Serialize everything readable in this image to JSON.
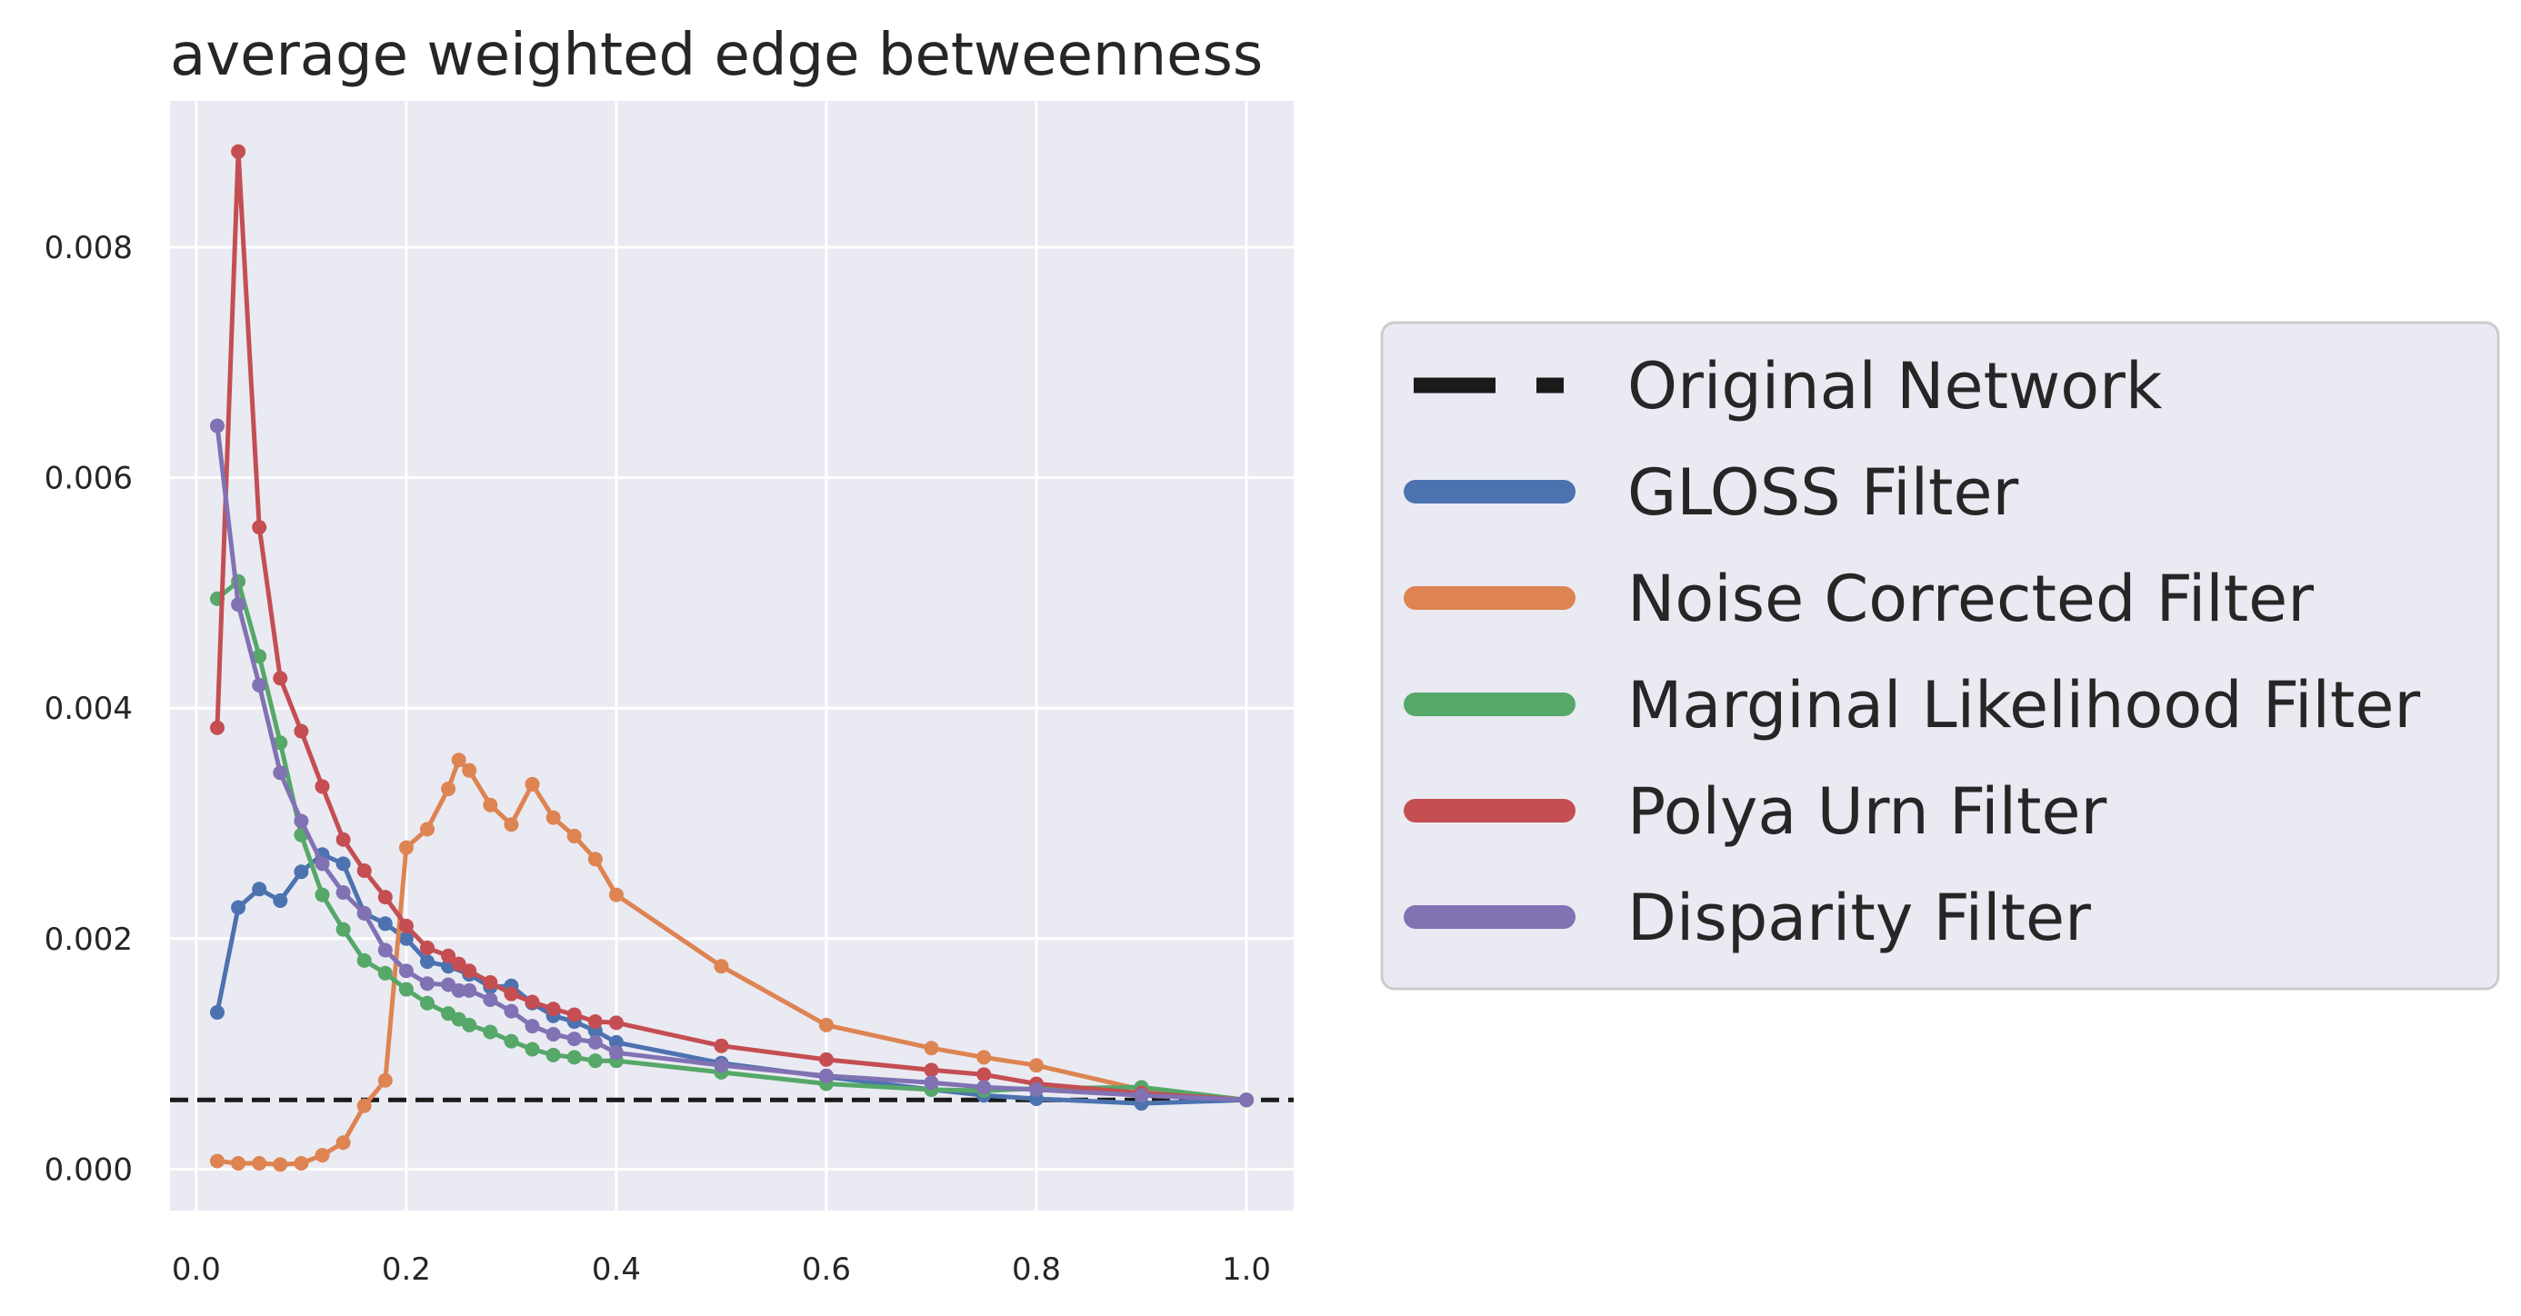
{
  "chart_data": {
    "type": "line",
    "title": "average weighted edge betweenness",
    "xlabel": "",
    "ylabel": "",
    "xlim": [
      -0.025,
      1.045
    ],
    "ylim": [
      -0.00036,
      0.00927
    ],
    "xticks": [
      0.0,
      0.2,
      0.4,
      0.6,
      0.8,
      1.0
    ],
    "xtick_labels": [
      "0.0",
      "0.2",
      "0.4",
      "0.6",
      "0.8",
      "1.0"
    ],
    "yticks": [
      0.0,
      0.002,
      0.004,
      0.006,
      0.008
    ],
    "ytick_labels": [
      "0.000",
      "0.002",
      "0.004",
      "0.006",
      "0.008"
    ],
    "grid": true,
    "legend": "outside-right",
    "reference_line": {
      "name": "Original Network",
      "y": 0.0006,
      "color": "#1a1a1a",
      "style": "dashed"
    },
    "series": [
      {
        "name": "GLOSS Filter",
        "color": "#4c72b0",
        "x": [
          0.02,
          0.04,
          0.06,
          0.08,
          0.1,
          0.12,
          0.14,
          0.16,
          0.18,
          0.2,
          0.22,
          0.24,
          0.26,
          0.28,
          0.3,
          0.32,
          0.34,
          0.36,
          0.38,
          0.4,
          0.5,
          0.6,
          0.7,
          0.75,
          0.8,
          0.9,
          1.0
        ],
        "y": [
          0.00136,
          0.00227,
          0.00243,
          0.00233,
          0.00258,
          0.00273,
          0.00265,
          0.00222,
          0.00213,
          0.002,
          0.0018,
          0.00176,
          0.00169,
          0.00158,
          0.00159,
          0.00144,
          0.00133,
          0.00128,
          0.0012,
          0.0011,
          0.00092,
          0.0008,
          0.00069,
          0.00064,
          0.00061,
          0.00057,
          0.0006
        ]
      },
      {
        "name": "Noise Corrected Filter",
        "color": "#dd8452",
        "x": [
          0.02,
          0.04,
          0.06,
          0.08,
          0.1,
          0.12,
          0.14,
          0.16,
          0.18,
          0.2,
          0.22,
          0.24,
          0.25,
          0.26,
          0.28,
          0.3,
          0.32,
          0.34,
          0.36,
          0.38,
          0.4,
          0.5,
          0.6,
          0.7,
          0.75,
          0.8,
          0.9,
          1.0
        ],
        "y": [
          7e-05,
          5e-05,
          5e-05,
          4e-05,
          5e-05,
          0.00012,
          0.00023,
          0.00055,
          0.00077,
          0.00279,
          0.00295,
          0.0033,
          0.00355,
          0.00346,
          0.00316,
          0.00299,
          0.00334,
          0.00305,
          0.00289,
          0.00269,
          0.00238,
          0.00176,
          0.00125,
          0.00105,
          0.00097,
          0.0009,
          0.00069,
          0.0006
        ]
      },
      {
        "name": "Marginal Likelihood Filter",
        "color": "#55a868",
        "x": [
          0.02,
          0.04,
          0.06,
          0.08,
          0.1,
          0.12,
          0.14,
          0.16,
          0.18,
          0.2,
          0.22,
          0.24,
          0.25,
          0.26,
          0.28,
          0.3,
          0.32,
          0.34,
          0.36,
          0.38,
          0.4,
          0.5,
          0.6,
          0.7,
          0.75,
          0.8,
          0.9,
          1.0
        ],
        "y": [
          0.00495,
          0.0051,
          0.00445,
          0.0037,
          0.0029,
          0.00238,
          0.00208,
          0.00181,
          0.0017,
          0.00156,
          0.00144,
          0.00135,
          0.0013,
          0.00125,
          0.00119,
          0.00111,
          0.00104,
          0.00099,
          0.00097,
          0.00094,
          0.00094,
          0.00084,
          0.00074,
          0.00069,
          0.00068,
          0.0007,
          0.00071,
          0.0006
        ]
      },
      {
        "name": "Polya Urn Filter",
        "color": "#c44e52",
        "x": [
          0.02,
          0.04,
          0.06,
          0.08,
          0.1,
          0.12,
          0.14,
          0.16,
          0.18,
          0.2,
          0.22,
          0.24,
          0.25,
          0.26,
          0.28,
          0.3,
          0.32,
          0.34,
          0.36,
          0.38,
          0.4,
          0.5,
          0.6,
          0.7,
          0.75,
          0.8,
          0.9,
          1.0
        ],
        "y": [
          0.00383,
          0.00883,
          0.00557,
          0.00426,
          0.0038,
          0.00332,
          0.00286,
          0.00259,
          0.00236,
          0.00211,
          0.00192,
          0.00185,
          0.00178,
          0.00172,
          0.00162,
          0.00152,
          0.00145,
          0.00139,
          0.00134,
          0.00128,
          0.00127,
          0.00107,
          0.00095,
          0.00086,
          0.00082,
          0.00074,
          0.00066,
          0.0006
        ]
      },
      {
        "name": "Disparity Filter",
        "color": "#8172b3",
        "x": [
          0.02,
          0.04,
          0.06,
          0.08,
          0.1,
          0.12,
          0.14,
          0.16,
          0.18,
          0.2,
          0.22,
          0.24,
          0.25,
          0.26,
          0.28,
          0.3,
          0.32,
          0.34,
          0.36,
          0.38,
          0.4,
          0.5,
          0.6,
          0.7,
          0.75,
          0.8,
          0.9,
          1.0
        ],
        "y": [
          0.00645,
          0.0049,
          0.0042,
          0.00344,
          0.00302,
          0.00265,
          0.0024,
          0.00222,
          0.0019,
          0.00172,
          0.00161,
          0.0016,
          0.00155,
          0.00155,
          0.00147,
          0.00137,
          0.00124,
          0.00117,
          0.00113,
          0.0011,
          0.00101,
          0.0009,
          0.00081,
          0.00075,
          0.00071,
          0.00069,
          0.00064,
          0.0006
        ]
      }
    ]
  }
}
